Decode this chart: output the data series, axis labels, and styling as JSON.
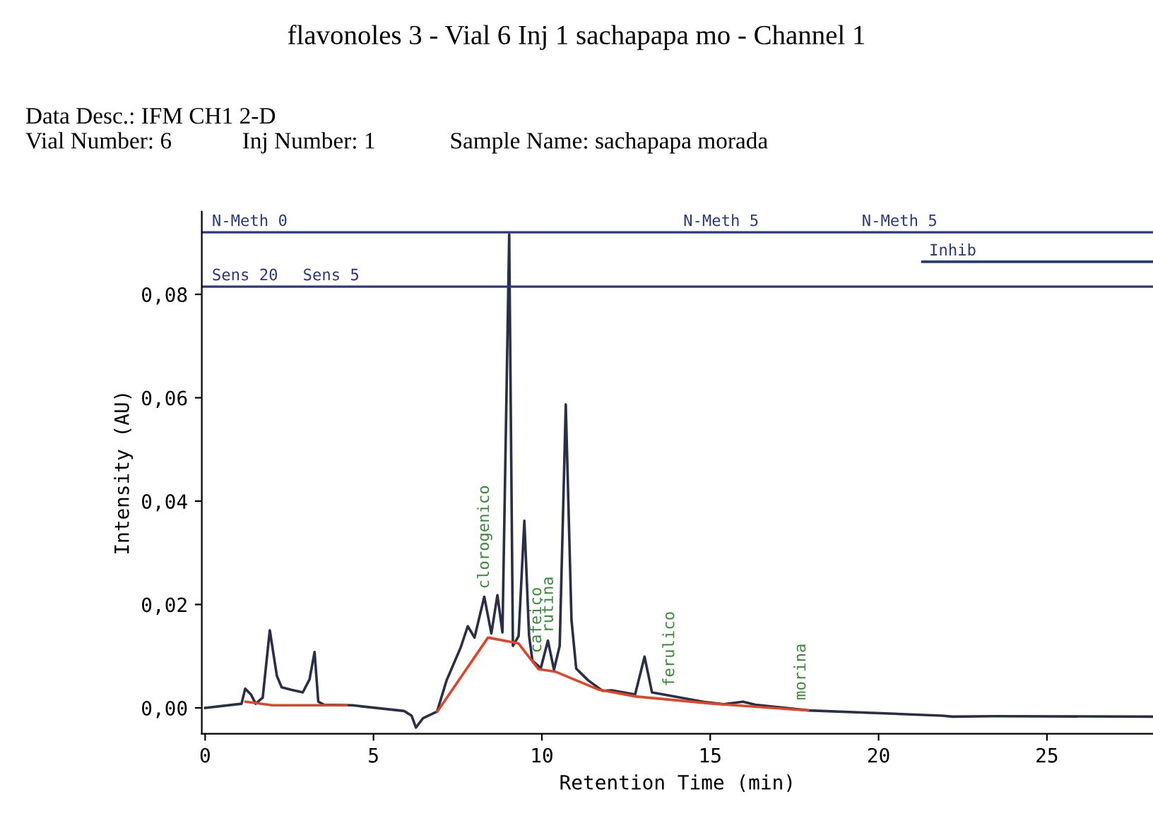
{
  "chart_data": {
    "type": "line",
    "title": "flavonoles 3 - Vial 6 Inj 1 sachapapa mo - Channel 1",
    "xlabel": "Retention Time (min)",
    "ylabel": "Intensity (AU)",
    "xlim": [
      -0.1,
      28.15
    ],
    "ylim": [
      -0.005,
      0.096
    ],
    "xticks": [
      0,
      5,
      10,
      15,
      20,
      25
    ],
    "yticks": [
      {
        "value": 0,
        "label": "0,00"
      },
      {
        "value": 0.02,
        "label": "0,02"
      },
      {
        "value": 0.04,
        "label": "0,04"
      },
      {
        "value": 0.06,
        "label": "0,06"
      },
      {
        "value": 0.08,
        "label": "0,08"
      }
    ],
    "grid": false,
    "legend": false,
    "line_style": "solid",
    "marker": "none",
    "series": [
      {
        "color": "#2a2f45",
        "x": [
          0.0,
          1.08,
          1.19,
          1.36,
          1.5,
          1.71,
          1.92,
          2.13,
          2.27,
          2.55,
          2.9,
          3.1,
          3.25,
          3.36,
          3.53,
          4.37,
          5.91,
          6.13,
          6.26,
          6.47,
          6.89,
          7.17,
          7.59,
          7.8,
          8.0,
          8.29,
          8.5,
          8.68,
          8.83,
          9.03,
          9.14,
          9.31,
          9.48,
          9.62,
          9.72,
          9.97,
          10.18,
          10.36,
          10.53,
          10.71,
          10.88,
          11.02,
          11.16,
          11.38,
          11.8,
          12.07,
          12.77,
          13.05,
          13.27,
          14.87,
          15.4,
          15.97,
          16.34,
          17.94,
          21.88,
          22.2,
          23.4,
          28.15
        ],
        "values": [
          0,
          0.0008,
          0.0037,
          0.0026,
          0.0008,
          0.002,
          0.015,
          0.0062,
          0.004,
          0.0035,
          0.003,
          0.0055,
          0.0108,
          0.0012,
          0.0006,
          0.0005,
          -0.0006,
          -0.0015,
          -0.0038,
          -0.002,
          -0.0007,
          0.0053,
          0.0117,
          0.0158,
          0.0136,
          0.0215,
          0.0144,
          0.0218,
          0.0146,
          0.0916,
          0.012,
          0.0139,
          0.0362,
          0.014,
          0.0091,
          0.0077,
          0.013,
          0.0074,
          0.012,
          0.0587,
          0.017,
          0.0076,
          0.0067,
          0.0053,
          0.0033,
          0.0034,
          0.0026,
          0.0099,
          0.003,
          0.0011,
          0.0007,
          0.0012,
          0.0006,
          -0.0005,
          -0.0015,
          -0.0017,
          -0.0016,
          -0.0017
        ]
      },
      {
        "color": "#e0452a",
        "x": [
          1.2,
          2.0,
          4.2,
          5.0,
          6.9,
          8.4,
          9.3,
          9.9,
          10.4,
          11.7,
          12.8,
          15.1,
          17.9
        ],
        "values": [
          0.0012,
          0.0005,
          0.0005,
          null,
          -0.0007,
          0.0136,
          0.0125,
          0.0075,
          0.007,
          0.0035,
          0.0022,
          0.0008,
          -0.0005
        ]
      },
      {
        "color": "#2a3a7a",
        "x": [
          21.3,
          28.15
        ],
        "values": [
          0.0863,
          0.0863
        ]
      }
    ],
    "ref_lines": [
      {
        "axis": "y",
        "value": 0.092,
        "color": "#2a3a7a"
      },
      {
        "axis": "y",
        "value": 0.0815,
        "color": "#2a3a7a"
      }
    ],
    "annotations": [
      "Data Desc.: IFM CH1 2-D",
      "Vial Number: 6",
      "Inj Number: 1",
      "Sample Name: sachapapa morada",
      {
        "text": "N-Meth 0",
        "x": 0,
        "y": 0.092
      },
      {
        "text": "Sens 20",
        "x": 0,
        "y": 0.0815
      },
      {
        "text": "Sens 5",
        "x": 2.7,
        "y": 0.0815
      },
      {
        "text": "N-Meth 5",
        "x": 14.0,
        "y": 0.092
      },
      {
        "text": "N-Meth 5",
        "x": 19.3,
        "y": 0.092
      },
      {
        "text": "Inhib",
        "x": 21.3,
        "y": 0.0863
      },
      {
        "text": "clorogenico",
        "x": 8.3,
        "y": 0.0215
      },
      {
        "text": "cafeico",
        "x": 9.85,
        "y": 0.0091
      },
      {
        "text": "rutina",
        "x": 10.2,
        "y": 0.013
      },
      {
        "text": "ferulico",
        "x": 13.8,
        "y": 0.0026
      },
      {
        "text": "morina",
        "x": 17.7,
        "y": 0
      }
    ]
  }
}
